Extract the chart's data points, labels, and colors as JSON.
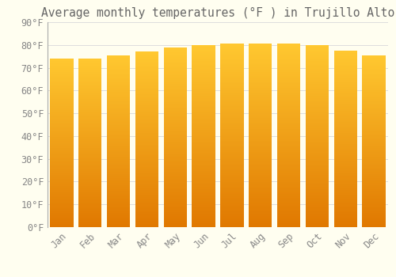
{
  "months": [
    "Jan",
    "Feb",
    "Mar",
    "Apr",
    "May",
    "Jun",
    "Jul",
    "Aug",
    "Sep",
    "Oct",
    "Nov",
    "Dec"
  ],
  "values": [
    74,
    74,
    75.5,
    77,
    79,
    80,
    80.5,
    80.5,
    80.5,
    80,
    77.5,
    75.5
  ],
  "title": "Average monthly temperatures (°F ) in Trujillo Alto",
  "ylim": [
    0,
    90
  ],
  "yticks": [
    0,
    10,
    20,
    30,
    40,
    50,
    60,
    70,
    80,
    90
  ],
  "ytick_labels": [
    "0°F",
    "10°F",
    "20°F",
    "30°F",
    "40°F",
    "50°F",
    "60°F",
    "70°F",
    "80°F",
    "90°F"
  ],
  "bar_color_top": "#FFC020",
  "bar_color_bottom": "#E07800",
  "background_color": "#FFFEF0",
  "grid_color": "#DDDDDD",
  "title_fontsize": 10.5,
  "tick_fontsize": 8.5,
  "bar_width": 0.82
}
